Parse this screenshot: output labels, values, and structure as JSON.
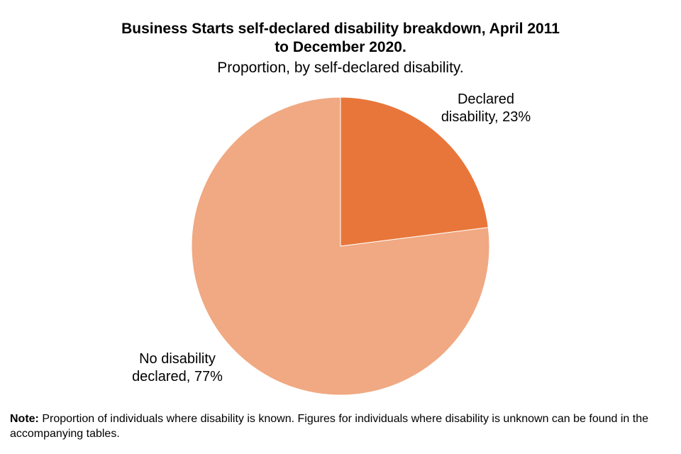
{
  "chart_data": {
    "type": "pie",
    "title_line1": "Business Starts self-declared disability breakdown, April 2011",
    "title_line2": "to December 2020.",
    "subtitle": "Proportion, by self-declared disability.",
    "slices": [
      {
        "label_line1": "Declared",
        "label_line2": "disability, 23%",
        "value": 23,
        "color": "#E8763A"
      },
      {
        "label_line1": "No disability",
        "label_line2": "declared, 77%",
        "value": 77,
        "color": "#F0A982"
      }
    ]
  },
  "note": {
    "bold": "Note:",
    "text": " Proportion of individuals  where disability is known. Figures for individuals  where disability is unknown  can be found in the accompanying tables."
  }
}
